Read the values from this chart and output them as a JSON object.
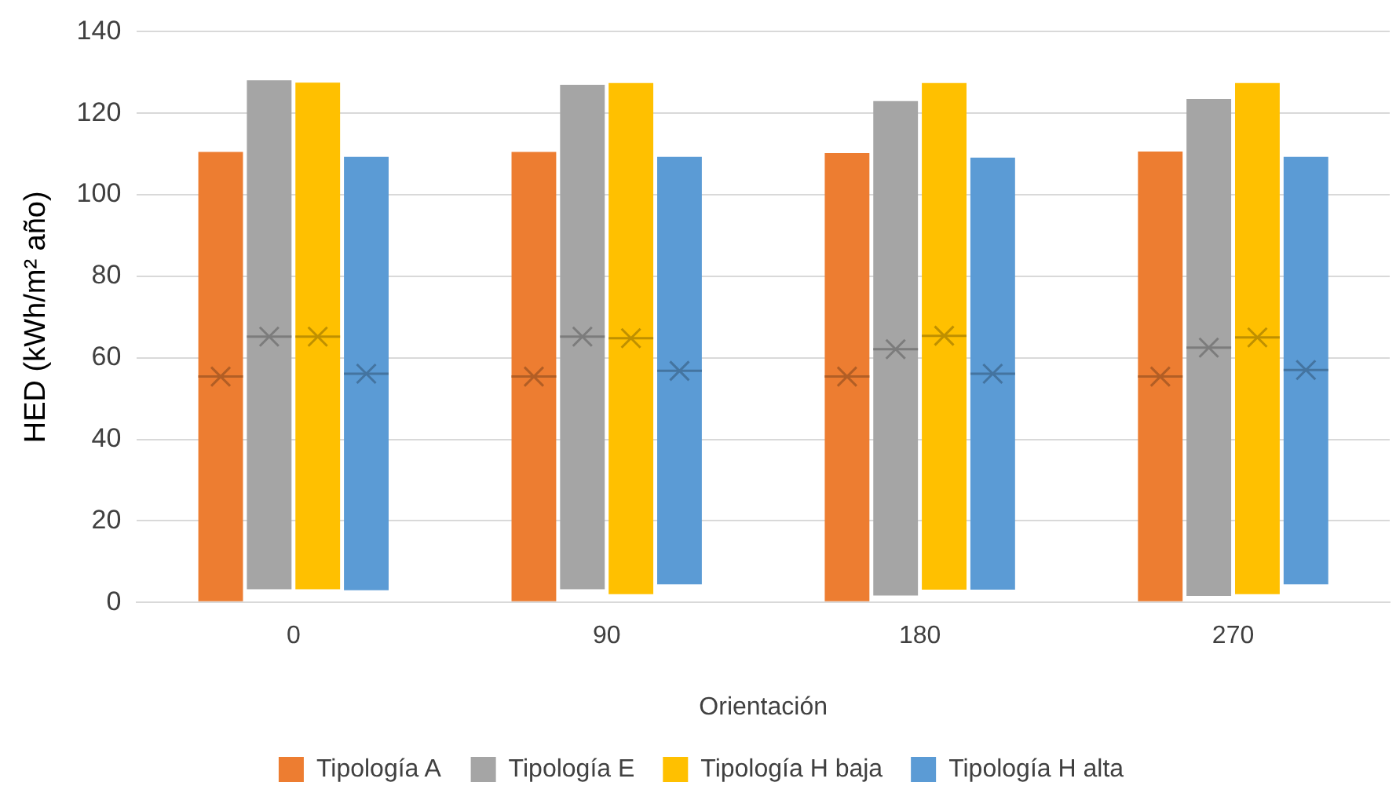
{
  "chart_data": {
    "type": "box",
    "xlabel": "Orientación",
    "ylabel": "HED (kWh/m² año)",
    "categories": [
      "0",
      "90",
      "180",
      "270"
    ],
    "ylim": [
      0,
      140
    ],
    "yticks": [
      0,
      20,
      40,
      60,
      80,
      100,
      120,
      140
    ],
    "grid": "y",
    "legend": "bottom",
    "series": [
      {
        "name": "Tipología A",
        "color": "#ed7d31",
        "boxes": [
          {
            "low": 0.3,
            "q1": 0.3,
            "median": 55.4,
            "q3": 110.5,
            "high": 110.5,
            "mean": 55.4
          },
          {
            "low": 0.3,
            "q1": 0.3,
            "median": 55.4,
            "q3": 110.5,
            "high": 110.5,
            "mean": 55.4
          },
          {
            "low": 0.3,
            "q1": 0.3,
            "median": 55.4,
            "q3": 110.2,
            "high": 110.2,
            "mean": 55.4
          },
          {
            "low": 0.3,
            "q1": 0.3,
            "median": 55.4,
            "q3": 110.6,
            "high": 110.6,
            "mean": 55.4
          }
        ]
      },
      {
        "name": "Tipología E",
        "color": "#a5a5a5",
        "boxes": [
          {
            "low": 3.2,
            "q1": 3.2,
            "median": 65.2,
            "q3": 128.1,
            "high": 128.1,
            "mean": 65.2
          },
          {
            "low": 3.2,
            "q1": 3.2,
            "median": 65.2,
            "q3": 127.0,
            "high": 127.0,
            "mean": 65.2
          },
          {
            "low": 1.7,
            "q1": 1.7,
            "median": 62.1,
            "q3": 123.0,
            "high": 123.0,
            "mean": 62.1
          },
          {
            "low": 1.6,
            "q1": 1.6,
            "median": 62.5,
            "q3": 123.5,
            "high": 123.5,
            "mean": 62.5
          }
        ]
      },
      {
        "name": "Tipología H baja",
        "color": "#ffc000",
        "boxes": [
          {
            "low": 3.2,
            "q1": 3.2,
            "median": 65.2,
            "q3": 127.5,
            "high": 127.5,
            "mean": 65.2
          },
          {
            "low": 2.0,
            "q1": 2.0,
            "median": 64.8,
            "q3": 127.4,
            "high": 127.4,
            "mean": 64.8
          },
          {
            "low": 3.1,
            "q1": 3.1,
            "median": 65.4,
            "q3": 127.4,
            "high": 127.4,
            "mean": 65.4
          },
          {
            "low": 2.0,
            "q1": 2.0,
            "median": 65.0,
            "q3": 127.4,
            "high": 127.4,
            "mean": 65.0
          }
        ]
      },
      {
        "name": "Tipología H alta",
        "color": "#5b9bd5",
        "boxes": [
          {
            "low": 3.0,
            "q1": 3.0,
            "median": 56.1,
            "q3": 109.3,
            "high": 109.3,
            "mean": 56.1
          },
          {
            "low": 4.4,
            "q1": 4.4,
            "median": 56.8,
            "q3": 109.3,
            "high": 109.3,
            "mean": 56.8
          },
          {
            "low": 3.1,
            "q1": 3.1,
            "median": 56.1,
            "q3": 109.1,
            "high": 109.1,
            "mean": 56.1
          },
          {
            "low": 4.4,
            "q1": 4.4,
            "median": 57.0,
            "q3": 109.3,
            "high": 109.3,
            "mean": 57.0
          }
        ]
      }
    ]
  }
}
